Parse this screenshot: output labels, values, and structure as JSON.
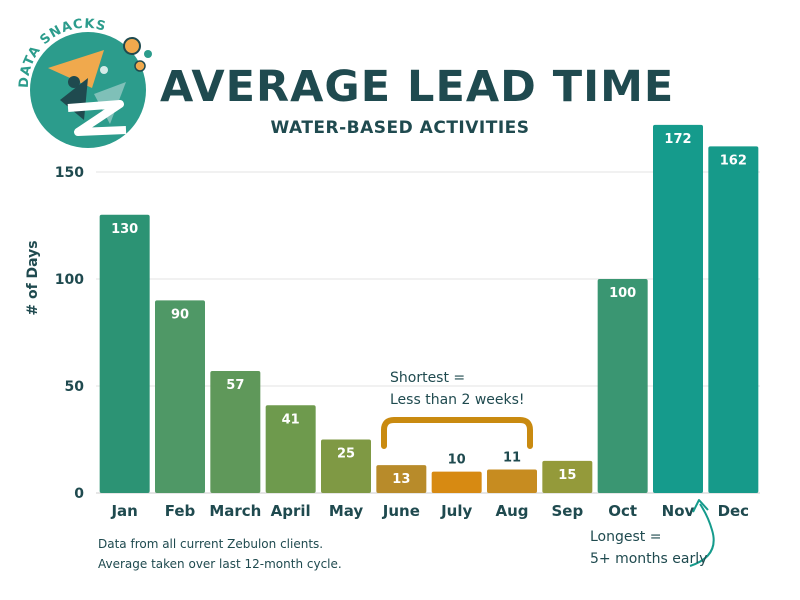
{
  "brand": {
    "logo_text": "DATA SNACKS"
  },
  "colors": {
    "text": "#1f4a4f",
    "gridline": "#e3e3e3",
    "axis": "#cccccc",
    "bar_label": "#ffffff",
    "highlight": "#c98a10"
  },
  "chart_data": {
    "type": "bar",
    "title": "AVERAGE LEAD TIME",
    "subtitle": "WATER-BASED ACTIVITIES",
    "xlabel": "",
    "ylabel": "# of Days",
    "ylim": [
      0,
      172
    ],
    "yticks": [
      0,
      50,
      100,
      150
    ],
    "grid": true,
    "categories": [
      "Jan",
      "Feb",
      "March",
      "April",
      "May",
      "June",
      "July",
      "Aug",
      "Sep",
      "Oct",
      "Nov",
      "Dec"
    ],
    "values": [
      130,
      90,
      57,
      41,
      25,
      13,
      10,
      11,
      15,
      100,
      172,
      162
    ],
    "bar_colors": [
      "#2c9374",
      "#4f9866",
      "#5f985a",
      "#6e9a4d",
      "#7f9944",
      "#b88b2a",
      "#d78a12",
      "#c78c20",
      "#949a3a",
      "#3a9672",
      "#159b8c",
      "#169a8a"
    ]
  },
  "annotations": {
    "shortest": {
      "line1": "Shortest =",
      "line2": "Less than 2 weeks!"
    },
    "longest": {
      "line1": "Longest =",
      "line2": "5+ months early"
    }
  },
  "footnote": {
    "line1": "Data from all current Zebulon clients.",
    "line2": "Average taken over last 12-month cycle."
  }
}
